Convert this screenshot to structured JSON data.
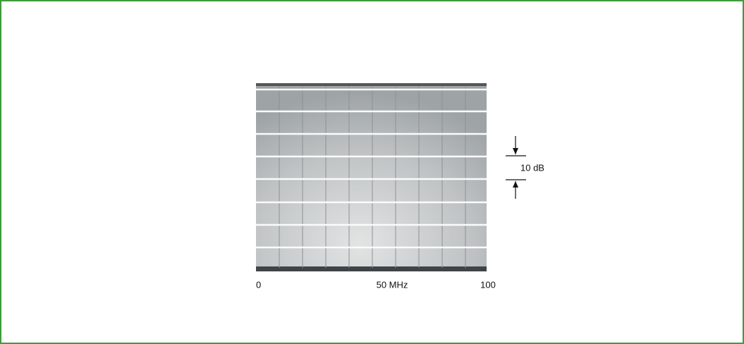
{
  "figure": {
    "scale_label": "10 dB",
    "x_labels": [
      "0",
      "50 MHz",
      "100"
    ]
  }
}
